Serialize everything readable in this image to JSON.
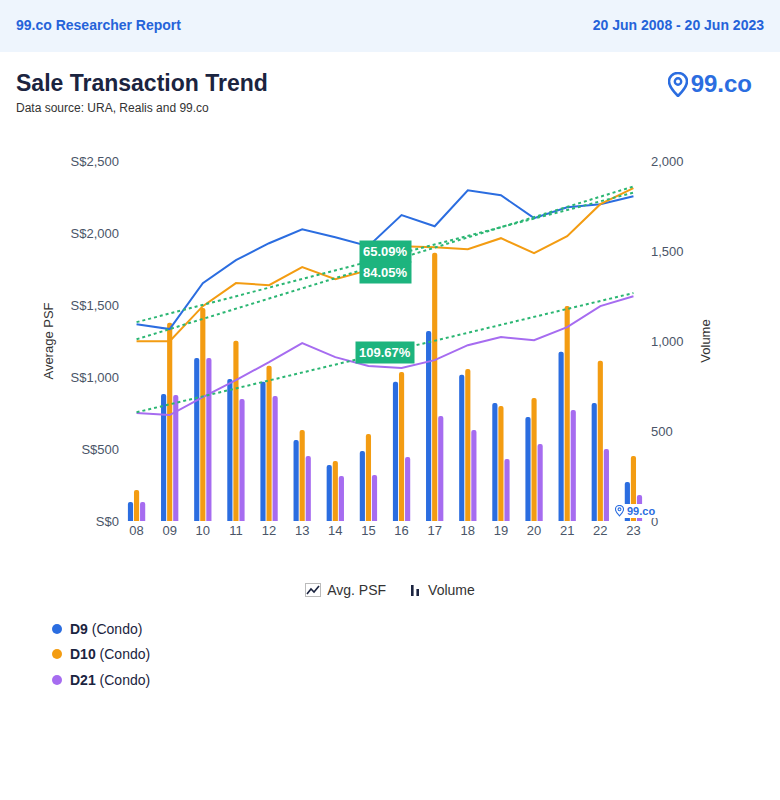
{
  "header": {
    "left": "99.co Researcher Report",
    "right": "20 Jun 2008 - 20 Jun 2023"
  },
  "logo": "99.co",
  "chart_data": {
    "type": "bar",
    "title": "Sale Transaction Trend",
    "subtitle": "Data source: URA, Realis and 99.co",
    "y_label": "Average PSF",
    "y2_label": "Volume",
    "categories": [
      "08",
      "09",
      "10",
      "11",
      "12",
      "13",
      "14",
      "15",
      "16",
      "17",
      "18",
      "19",
      "20",
      "21",
      "22",
      "23"
    ],
    "ylim": [
      0,
      2500
    ],
    "yticks": [
      {
        "value": 0,
        "label": "S$0"
      },
      {
        "value": 500,
        "label": "S$500"
      },
      {
        "value": 1000,
        "label": "S$1,000"
      },
      {
        "value": 1500,
        "label": "S$1,500"
      },
      {
        "value": 2000,
        "label": "S$2,000"
      },
      {
        "value": 2500,
        "label": "S$2,500"
      }
    ],
    "y2lim": [
      0,
      2000
    ],
    "y2ticks": [
      0,
      500,
      {
        "value": 1000,
        "label": "1,000"
      },
      {
        "value": 1500,
        "label": "1,500"
      },
      {
        "value": 2000,
        "label": "2,000"
      }
    ],
    "grid": false,
    "legend": "bottom-left",
    "legend_types": [
      {
        "type": "line",
        "label": "Avg. PSF"
      },
      {
        "type": "bar",
        "label": "Volume"
      }
    ],
    "series": [
      {
        "name": "D9 (Condo)",
        "type": "line",
        "color": "#2b6de0",
        "values": [
          1367,
          1333,
          1652,
          1811,
          1929,
          2026,
          1971,
          1908,
          2124,
          2047,
          2297,
          2262,
          2103,
          2179,
          2200,
          2255
        ]
      },
      {
        "name": "D10 (Condo)",
        "type": "line",
        "color": "#f39c12",
        "values": [
          1249,
          1249,
          1492,
          1652,
          1638,
          1763,
          1679,
          1742,
          1908,
          1901,
          1888,
          1964,
          1860,
          1978,
          2200,
          2311
        ]
      },
      {
        "name": "D21 (Condo)",
        "type": "line",
        "color": "#a66cf0",
        "values": [
          750,
          736,
          861,
          979,
          1103,
          1235,
          1138,
          1076,
          1062,
          1117,
          1221,
          1277,
          1256,
          1346,
          1492,
          1561
        ]
      },
      {
        "name": "D9 (Condo)",
        "type": "bar",
        "axis": "y2",
        "color": "#2b6de0",
        "values": [
          106,
          706,
          906,
          789,
          773,
          450,
          311,
          389,
          773,
          1056,
          812,
          656,
          578,
          940,
          656,
          217
        ]
      },
      {
        "name": "D10 (Condo)",
        "type": "bar",
        "axis": "y2",
        "color": "#f39c12",
        "values": [
          172,
          1101,
          1184,
          1001,
          862,
          506,
          334,
          484,
          828,
          1490,
          845,
          639,
          684,
          1195,
          890,
          361
        ]
      },
      {
        "name": "D21 (Condo)",
        "type": "bar",
        "axis": "y2",
        "color": "#a66cf0",
        "values": [
          106,
          700,
          906,
          678,
          695,
          361,
          250,
          256,
          356,
          584,
          506,
          345,
          428,
          617,
          400,
          145
        ]
      },
      {
        "type": "line",
        "line_style": "dotted",
        "color": "#2bb673",
        "values": [
          1381,
          null,
          null,
          null,
          null,
          null,
          null,
          null,
          null,
          null,
          null,
          null,
          null,
          null,
          null,
          2280
        ]
      },
      {
        "type": "line",
        "line_style": "dotted",
        "color": "#2bb673",
        "values": [
          1262,
          null,
          null,
          null,
          null,
          null,
          null,
          null,
          null,
          null,
          null,
          null,
          null,
          null,
          null,
          2323
        ]
      },
      {
        "type": "line",
        "line_style": "dotted",
        "color": "#2bb673",
        "values": [
          755,
          null,
          null,
          null,
          null,
          null,
          null,
          null,
          null,
          null,
          null,
          null,
          null,
          null,
          null,
          1583
        ]
      }
    ],
    "annotations": [
      {
        "text": "65.09%"
      },
      {
        "text": "84.05%"
      },
      {
        "text": "109.67%"
      }
    ]
  }
}
